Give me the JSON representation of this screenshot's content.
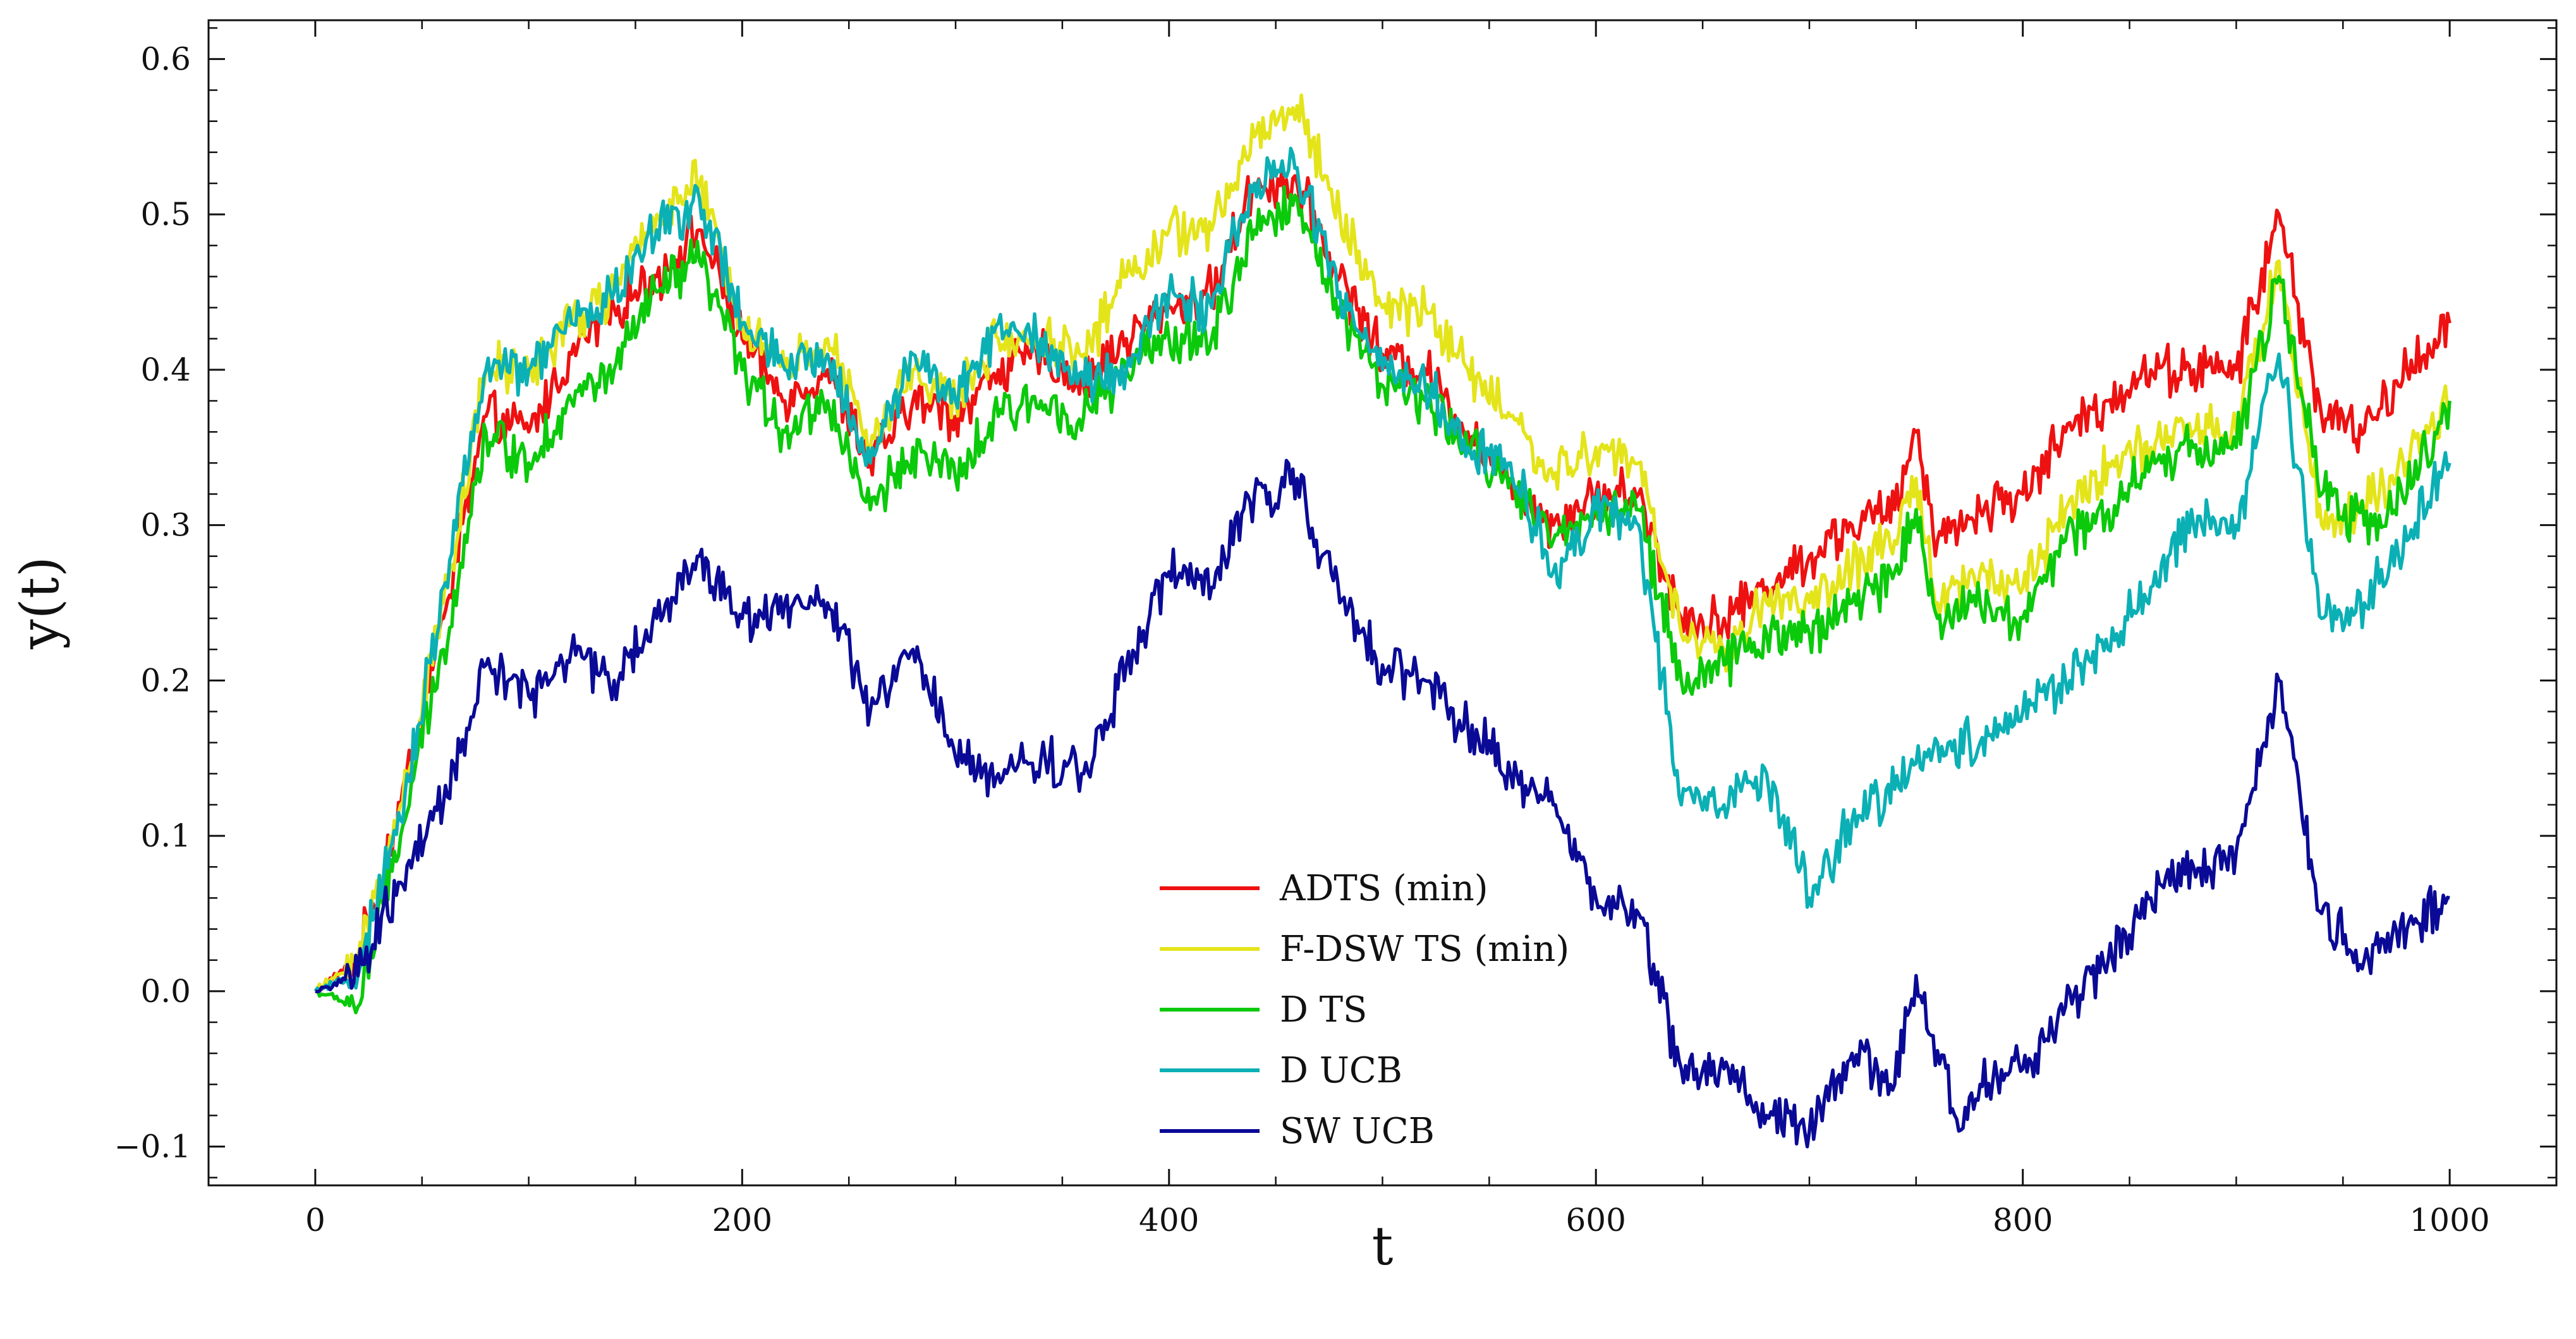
{
  "chart_data": {
    "type": "line",
    "xlabel": "t",
    "ylabel": "y(t)",
    "xlim": [
      -50,
      1050
    ],
    "ylim": [
      -0.125,
      0.625
    ],
    "xticks": [
      0,
      200,
      400,
      600,
      800,
      1000
    ],
    "xtick_labels": [
      "0",
      "200",
      "400",
      "600",
      "800",
      "1000"
    ],
    "yticks": [
      -0.1,
      0.0,
      0.1,
      0.2,
      0.3,
      0.4,
      0.5,
      0.6
    ],
    "ytick_labels": [
      "−0.1",
      "0.0",
      "0.1",
      "0.2",
      "0.3",
      "0.4",
      "0.5",
      "0.6"
    ],
    "grid": false,
    "legend_position": "lower-center",
    "series": [
      {
        "name": "ADTS (min)",
        "color": "#ee1111",
        "points": [
          [
            0,
            0.0
          ],
          [
            20,
            0.02
          ],
          [
            40,
            0.12
          ],
          [
            60,
            0.24
          ],
          [
            80,
            0.37
          ],
          [
            100,
            0.36
          ],
          [
            120,
            0.41
          ],
          [
            140,
            0.44
          ],
          [
            160,
            0.46
          ],
          [
            180,
            0.49
          ],
          [
            200,
            0.42
          ],
          [
            220,
            0.38
          ],
          [
            240,
            0.4
          ],
          [
            260,
            0.34
          ],
          [
            280,
            0.38
          ],
          [
            300,
            0.37
          ],
          [
            320,
            0.4
          ],
          [
            340,
            0.41
          ],
          [
            360,
            0.39
          ],
          [
            380,
            0.42
          ],
          [
            400,
            0.44
          ],
          [
            420,
            0.45
          ],
          [
            440,
            0.52
          ],
          [
            460,
            0.52
          ],
          [
            480,
            0.46
          ],
          [
            500,
            0.41
          ],
          [
            520,
            0.4
          ],
          [
            540,
            0.36
          ],
          [
            560,
            0.33
          ],
          [
            580,
            0.3
          ],
          [
            600,
            0.32
          ],
          [
            620,
            0.32
          ],
          [
            640,
            0.24
          ],
          [
            660,
            0.24
          ],
          [
            680,
            0.26
          ],
          [
            700,
            0.28
          ],
          [
            720,
            0.3
          ],
          [
            740,
            0.31
          ],
          [
            750,
            0.36
          ],
          [
            760,
            0.29
          ],
          [
            780,
            0.31
          ],
          [
            800,
            0.32
          ],
          [
            820,
            0.36
          ],
          [
            840,
            0.38
          ],
          [
            860,
            0.4
          ],
          [
            880,
            0.4
          ],
          [
            900,
            0.4
          ],
          [
            920,
            0.5
          ],
          [
            940,
            0.37
          ],
          [
            960,
            0.36
          ],
          [
            980,
            0.4
          ],
          [
            1000,
            0.43
          ]
        ]
      },
      {
        "name": "F-DSW TS (min)",
        "color": "#e4e41b",
        "points": [
          [
            0,
            0.0
          ],
          [
            20,
            0.02
          ],
          [
            40,
            0.12
          ],
          [
            60,
            0.25
          ],
          [
            80,
            0.4
          ],
          [
            100,
            0.4
          ],
          [
            120,
            0.43
          ],
          [
            140,
            0.45
          ],
          [
            160,
            0.5
          ],
          [
            180,
            0.52
          ],
          [
            200,
            0.43
          ],
          [
            220,
            0.4
          ],
          [
            240,
            0.42
          ],
          [
            260,
            0.35
          ],
          [
            280,
            0.4
          ],
          [
            300,
            0.38
          ],
          [
            320,
            0.42
          ],
          [
            340,
            0.42
          ],
          [
            360,
            0.41
          ],
          [
            380,
            0.46
          ],
          [
            400,
            0.49
          ],
          [
            420,
            0.49
          ],
          [
            440,
            0.55
          ],
          [
            460,
            0.57
          ],
          [
            480,
            0.5
          ],
          [
            500,
            0.44
          ],
          [
            520,
            0.44
          ],
          [
            540,
            0.4
          ],
          [
            560,
            0.37
          ],
          [
            580,
            0.33
          ],
          [
            600,
            0.35
          ],
          [
            620,
            0.34
          ],
          [
            640,
            0.23
          ],
          [
            660,
            0.22
          ],
          [
            680,
            0.25
          ],
          [
            700,
            0.25
          ],
          [
            720,
            0.27
          ],
          [
            740,
            0.29
          ],
          [
            750,
            0.33
          ],
          [
            760,
            0.25
          ],
          [
            780,
            0.27
          ],
          [
            800,
            0.26
          ],
          [
            820,
            0.31
          ],
          [
            840,
            0.34
          ],
          [
            860,
            0.35
          ],
          [
            880,
            0.36
          ],
          [
            900,
            0.36
          ],
          [
            920,
            0.47
          ],
          [
            940,
            0.3
          ],
          [
            960,
            0.31
          ],
          [
            980,
            0.34
          ],
          [
            1000,
            0.38
          ]
        ]
      },
      {
        "name": "D TS",
        "color": "#0bc90b",
        "points": [
          [
            0,
            0.0
          ],
          [
            20,
            -0.01
          ],
          [
            40,
            0.1
          ],
          [
            60,
            0.22
          ],
          [
            80,
            0.36
          ],
          [
            100,
            0.34
          ],
          [
            120,
            0.38
          ],
          [
            140,
            0.4
          ],
          [
            160,
            0.45
          ],
          [
            180,
            0.47
          ],
          [
            200,
            0.4
          ],
          [
            220,
            0.36
          ],
          [
            240,
            0.38
          ],
          [
            260,
            0.31
          ],
          [
            280,
            0.35
          ],
          [
            300,
            0.33
          ],
          [
            320,
            0.37
          ],
          [
            340,
            0.38
          ],
          [
            360,
            0.37
          ],
          [
            380,
            0.4
          ],
          [
            400,
            0.42
          ],
          [
            420,
            0.42
          ],
          [
            440,
            0.49
          ],
          [
            460,
            0.51
          ],
          [
            480,
            0.44
          ],
          [
            500,
            0.39
          ],
          [
            520,
            0.38
          ],
          [
            540,
            0.35
          ],
          [
            560,
            0.33
          ],
          [
            580,
            0.29
          ],
          [
            600,
            0.31
          ],
          [
            620,
            0.31
          ],
          [
            640,
            0.2
          ],
          [
            660,
            0.21
          ],
          [
            680,
            0.23
          ],
          [
            700,
            0.23
          ],
          [
            720,
            0.25
          ],
          [
            740,
            0.27
          ],
          [
            750,
            0.31
          ],
          [
            760,
            0.24
          ],
          [
            780,
            0.25
          ],
          [
            800,
            0.24
          ],
          [
            820,
            0.29
          ],
          [
            840,
            0.31
          ],
          [
            860,
            0.34
          ],
          [
            880,
            0.35
          ],
          [
            900,
            0.35
          ],
          [
            920,
            0.46
          ],
          [
            940,
            0.32
          ],
          [
            960,
            0.3
          ],
          [
            980,
            0.32
          ],
          [
            1000,
            0.38
          ]
        ]
      },
      {
        "name": "D UCB",
        "color": "#0bb0b5",
        "points": [
          [
            0,
            0.0
          ],
          [
            20,
            0.01
          ],
          [
            40,
            0.11
          ],
          [
            60,
            0.26
          ],
          [
            80,
            0.4
          ],
          [
            100,
            0.4
          ],
          [
            120,
            0.43
          ],
          [
            140,
            0.45
          ],
          [
            160,
            0.49
          ],
          [
            180,
            0.51
          ],
          [
            200,
            0.43
          ],
          [
            220,
            0.4
          ],
          [
            240,
            0.41
          ],
          [
            260,
            0.34
          ],
          [
            280,
            0.41
          ],
          [
            300,
            0.38
          ],
          [
            320,
            0.43
          ],
          [
            340,
            0.42
          ],
          [
            360,
            0.39
          ],
          [
            380,
            0.4
          ],
          [
            400,
            0.45
          ],
          [
            420,
            0.44
          ],
          [
            440,
            0.52
          ],
          [
            460,
            0.53
          ],
          [
            480,
            0.45
          ],
          [
            500,
            0.4
          ],
          [
            520,
            0.39
          ],
          [
            540,
            0.35
          ],
          [
            560,
            0.34
          ],
          [
            580,
            0.27
          ],
          [
            600,
            0.31
          ],
          [
            620,
            0.3
          ],
          [
            640,
            0.12
          ],
          [
            660,
            0.12
          ],
          [
            680,
            0.14
          ],
          [
            700,
            0.06
          ],
          [
            720,
            0.11
          ],
          [
            740,
            0.13
          ],
          [
            760,
            0.16
          ],
          [
            780,
            0.16
          ],
          [
            800,
            0.18
          ],
          [
            820,
            0.2
          ],
          [
            840,
            0.22
          ],
          [
            860,
            0.26
          ],
          [
            880,
            0.3
          ],
          [
            900,
            0.3
          ],
          [
            920,
            0.41
          ],
          [
            940,
            0.24
          ],
          [
            960,
            0.25
          ],
          [
            980,
            0.29
          ],
          [
            1000,
            0.34
          ]
        ]
      },
      {
        "name": "SW UCB",
        "color": "#0a0a96",
        "points": [
          [
            0,
            0.0
          ],
          [
            20,
            0.01
          ],
          [
            40,
            0.07
          ],
          [
            60,
            0.12
          ],
          [
            80,
            0.21
          ],
          [
            100,
            0.19
          ],
          [
            120,
            0.22
          ],
          [
            140,
            0.2
          ],
          [
            160,
            0.24
          ],
          [
            180,
            0.28
          ],
          [
            200,
            0.24
          ],
          [
            220,
            0.25
          ],
          [
            240,
            0.25
          ],
          [
            260,
            0.18
          ],
          [
            280,
            0.22
          ],
          [
            300,
            0.15
          ],
          [
            320,
            0.14
          ],
          [
            340,
            0.15
          ],
          [
            360,
            0.14
          ],
          [
            380,
            0.21
          ],
          [
            400,
            0.27
          ],
          [
            420,
            0.26
          ],
          [
            440,
            0.32
          ],
          [
            460,
            0.33
          ],
          [
            480,
            0.25
          ],
          [
            500,
            0.21
          ],
          [
            520,
            0.2
          ],
          [
            540,
            0.17
          ],
          [
            560,
            0.14
          ],
          [
            580,
            0.12
          ],
          [
            600,
            0.06
          ],
          [
            620,
            0.05
          ],
          [
            640,
            -0.05
          ],
          [
            660,
            -0.05
          ],
          [
            680,
            -0.08
          ],
          [
            700,
            -0.09
          ],
          [
            720,
            -0.04
          ],
          [
            740,
            -0.06
          ],
          [
            750,
            0.01
          ],
          [
            770,
            -0.09
          ],
          [
            780,
            -0.06
          ],
          [
            800,
            -0.05
          ],
          [
            820,
            -0.01
          ],
          [
            840,
            0.02
          ],
          [
            860,
            0.06
          ],
          [
            880,
            0.08
          ],
          [
            900,
            0.09
          ],
          [
            920,
            0.2
          ],
          [
            940,
            0.05
          ],
          [
            960,
            0.02
          ],
          [
            980,
            0.04
          ],
          [
            1000,
            0.06
          ]
        ]
      }
    ]
  }
}
